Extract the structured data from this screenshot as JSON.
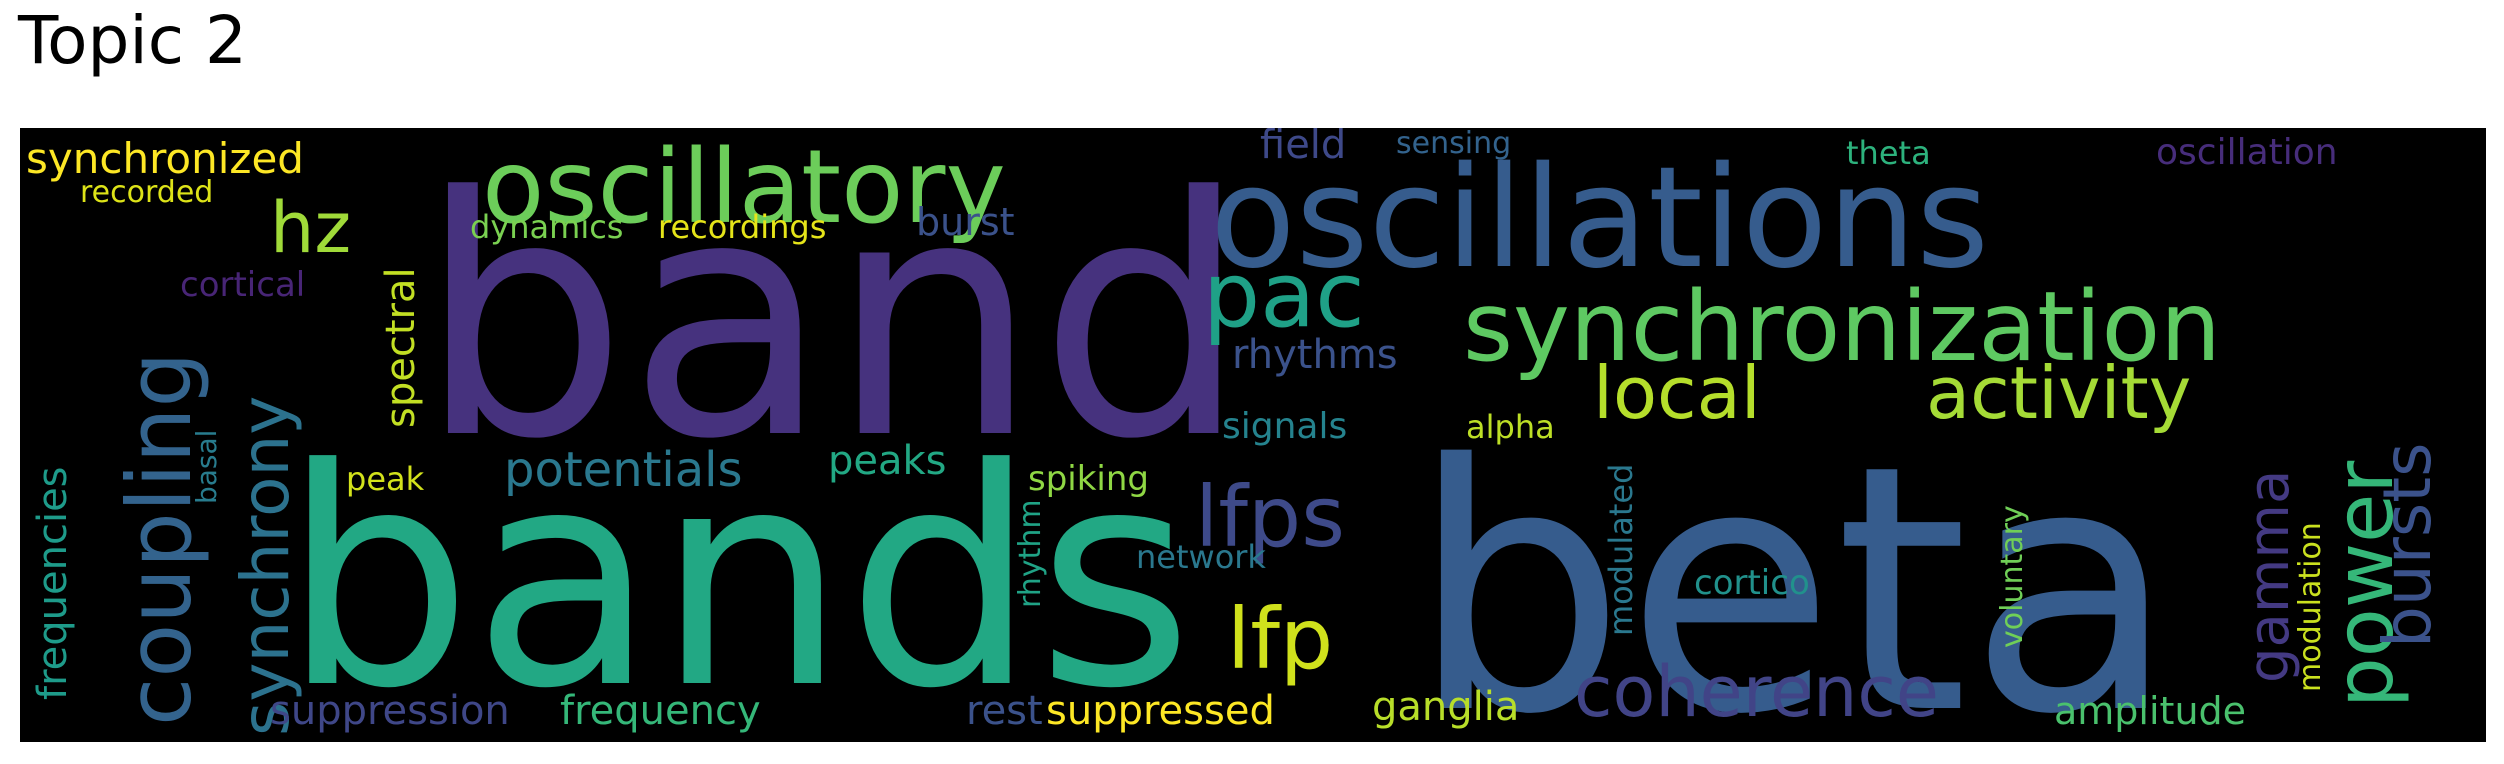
{
  "title": "Topic 2",
  "background": "#000000",
  "words": [
    {
      "text": "band",
      "color": "#46327e"
    },
    {
      "text": "bands",
      "color": "#22a884"
    },
    {
      "text": "beta",
      "color": "#365c8d"
    },
    {
      "text": "oscillations",
      "color": "#365c8d"
    },
    {
      "text": "oscillatory",
      "color": "#6ccd5a"
    },
    {
      "text": "synchronization",
      "color": "#5ec962"
    },
    {
      "text": "coupling",
      "color": "#33638d"
    },
    {
      "text": "synchrony",
      "color": "#2c728e"
    },
    {
      "text": "hz",
      "color": "#a0da39"
    },
    {
      "text": "pac",
      "color": "#1fa187"
    },
    {
      "text": "local",
      "color": "#b5de2b"
    },
    {
      "text": "activity",
      "color": "#a5db36"
    },
    {
      "text": "power",
      "color": "#35b779"
    },
    {
      "text": "bursts",
      "color": "#3b528b"
    },
    {
      "text": "lfps",
      "color": "#3e4a89"
    },
    {
      "text": "lfp",
      "color": "#d0e11c"
    },
    {
      "text": "coherence",
      "color": "#414487"
    },
    {
      "text": "gamma",
      "color": "#443a83"
    },
    {
      "text": "synchronized",
      "color": "#fde725"
    },
    {
      "text": "recorded",
      "color": "#dde318"
    },
    {
      "text": "cortical",
      "color": "#482576"
    },
    {
      "text": "spectral",
      "color": "#c2df23"
    },
    {
      "text": "frequencies",
      "color": "#1e9b8a"
    },
    {
      "text": "basal",
      "color": "#287c8e"
    },
    {
      "text": "dynamics",
      "color": "#7ad151"
    },
    {
      "text": "recordings",
      "color": "#e5e419"
    },
    {
      "text": "burst",
      "color": "#3b528b"
    },
    {
      "text": "field",
      "color": "#3e4989"
    },
    {
      "text": "sensing",
      "color": "#33638d"
    },
    {
      "text": "theta",
      "color": "#2db27d"
    },
    {
      "text": "oscillation",
      "color": "#472d7b"
    },
    {
      "text": "rhythms",
      "color": "#3b528b"
    },
    {
      "text": "signals",
      "color": "#25838e"
    },
    {
      "text": "alpha",
      "color": "#bddf26"
    },
    {
      "text": "peak",
      "color": "#d2e21b"
    },
    {
      "text": "potentials",
      "color": "#2a788e"
    },
    {
      "text": "peaks",
      "color": "#22a884"
    },
    {
      "text": "spiking",
      "color": "#8fd744"
    },
    {
      "text": "rhythm",
      "color": "#20a386"
    },
    {
      "text": "network",
      "color": "#2a788e"
    },
    {
      "text": "modulated",
      "color": "#2a788e"
    },
    {
      "text": "voluntary",
      "color": "#70cf57"
    },
    {
      "text": "modulation",
      "color": "#cae11f"
    },
    {
      "text": "cortico",
      "color": "#21918c"
    },
    {
      "text": "suppression",
      "color": "#3f4788"
    },
    {
      "text": "frequency",
      "color": "#35b779"
    },
    {
      "text": "rest",
      "color": "#3b528b"
    },
    {
      "text": "suppressed",
      "color": "#fde725"
    },
    {
      "text": "ganglia",
      "color": "#b8de29"
    },
    {
      "text": "amplitude",
      "color": "#4ac16d"
    }
  ]
}
